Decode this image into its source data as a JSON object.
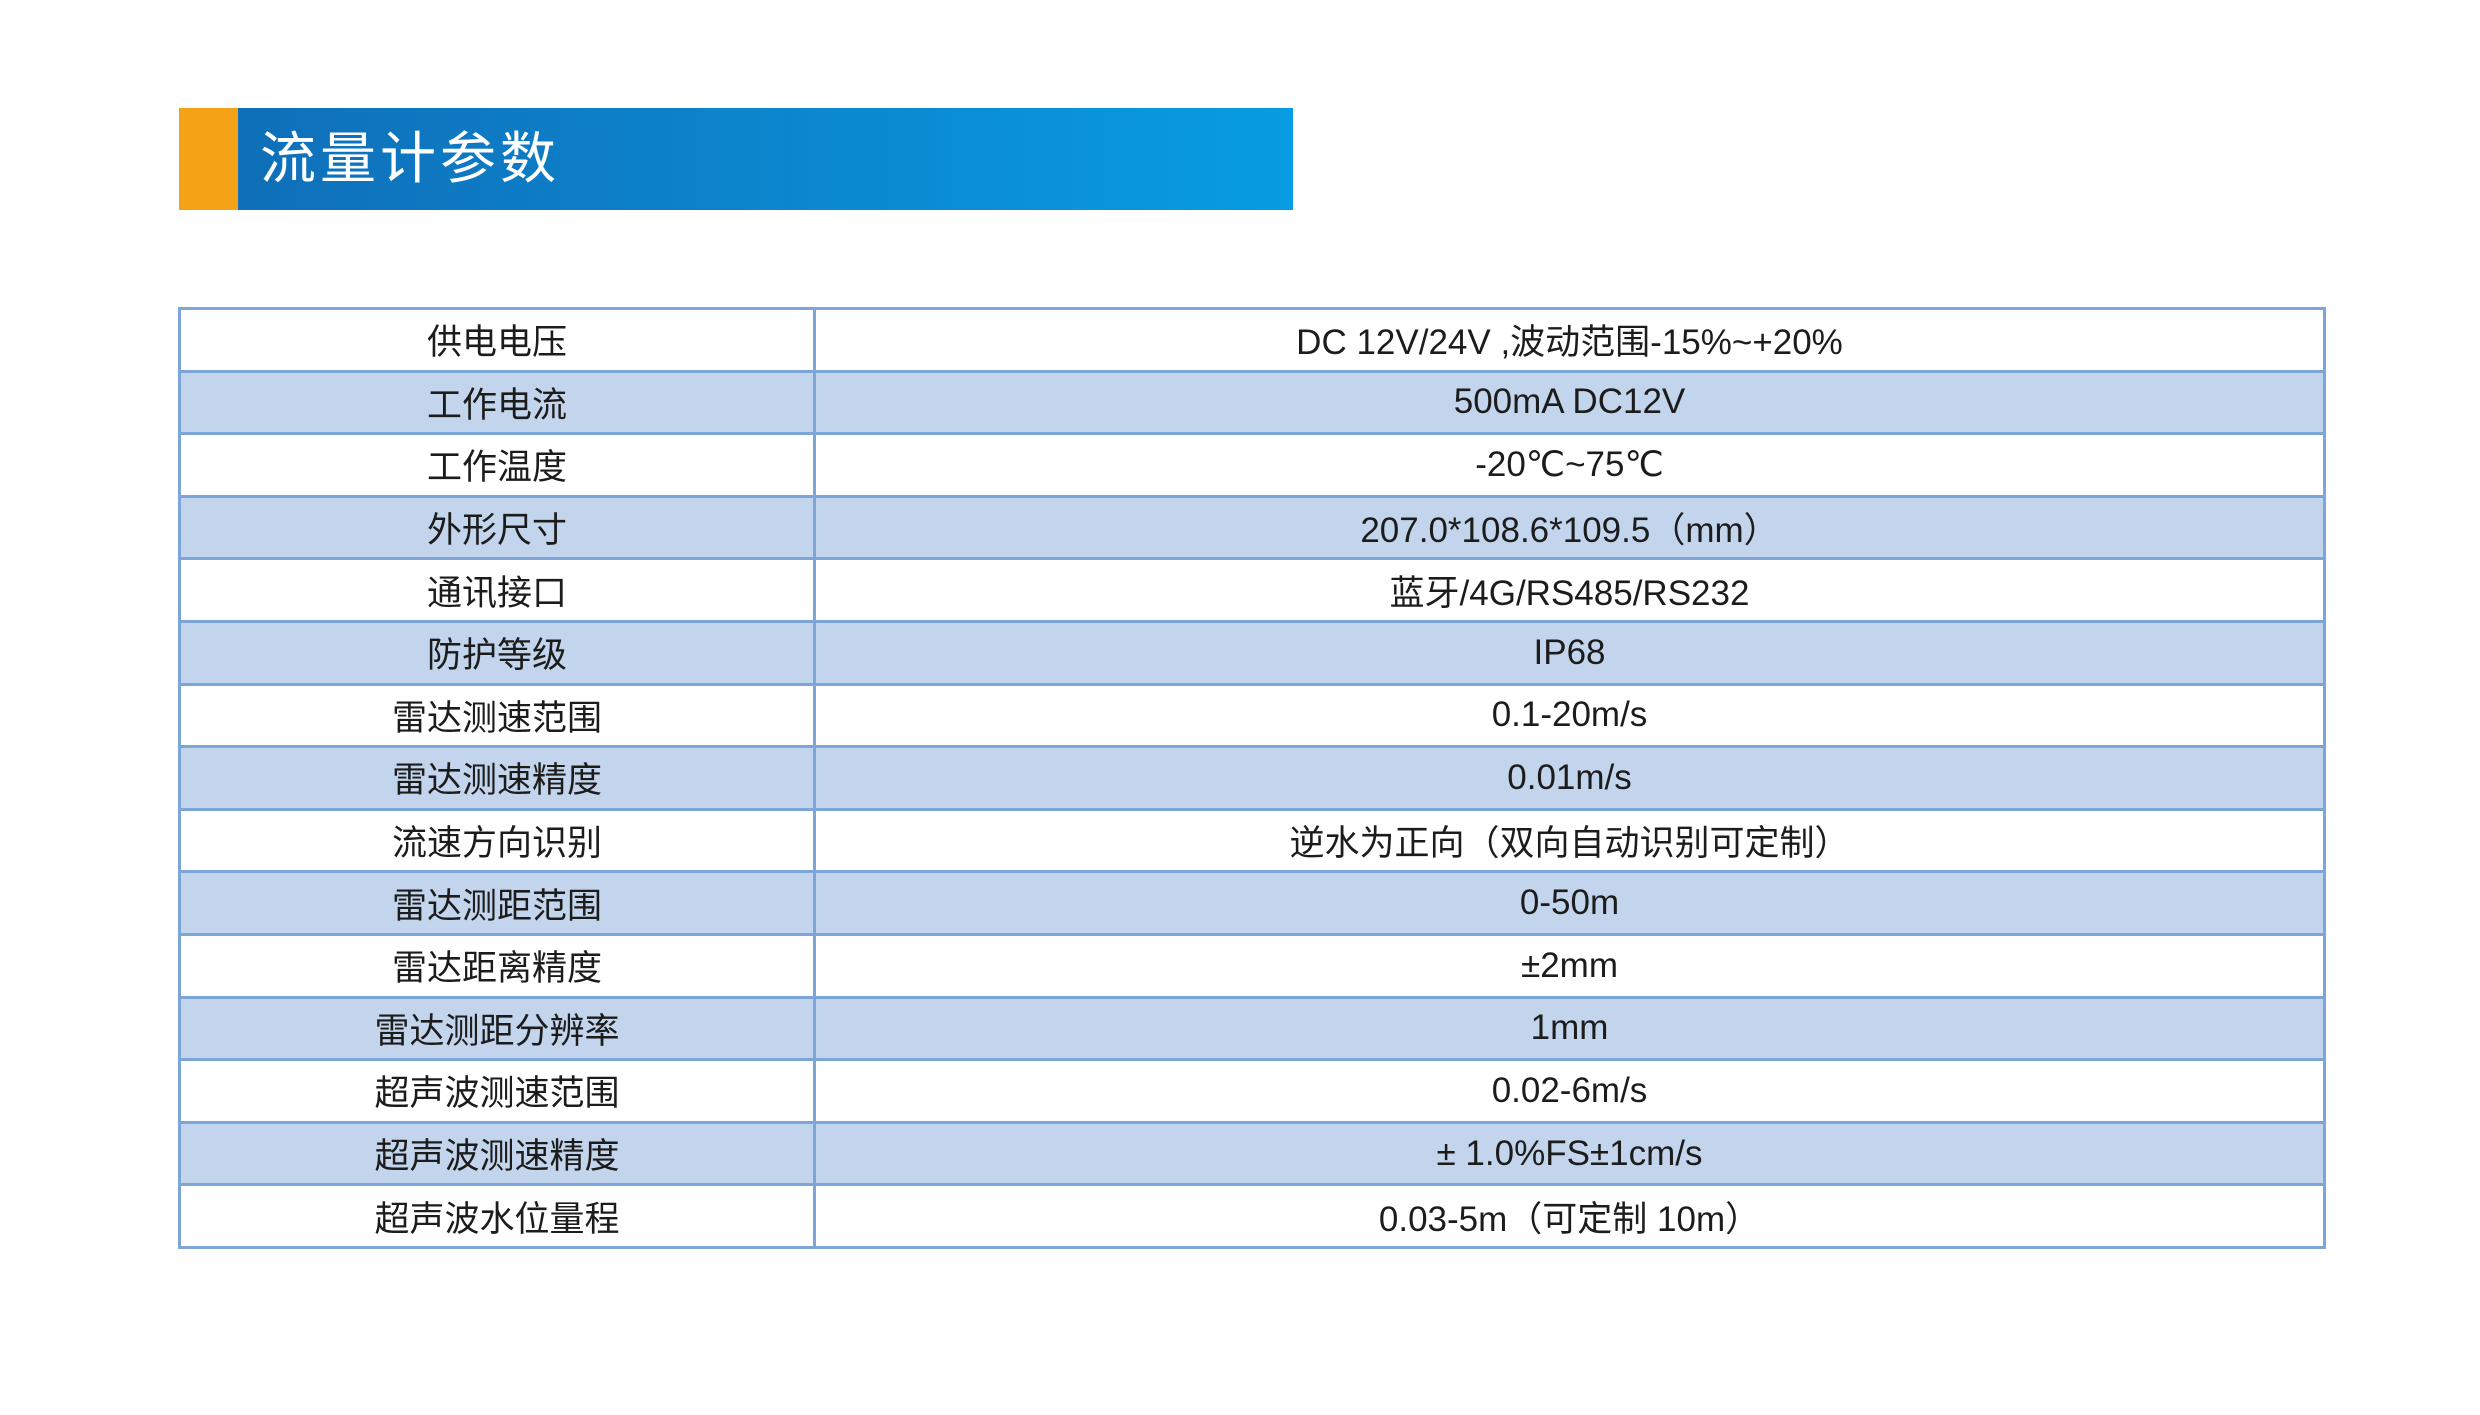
{
  "page": {
    "background": "#ffffff"
  },
  "colors": {
    "accent_orange": "#f5a216",
    "bar_gradient_start": "#0f6fb9",
    "bar_gradient_end": "#089ce2",
    "row_fill": "#ffffff",
    "row_alt_fill": "#c3d5ec",
    "table_border": "#7ca6d8",
    "title_text": "#ffffff",
    "body_text": "#1c1c1c"
  },
  "header": {
    "title": "流量计参数"
  },
  "table": {
    "rows": [
      {
        "label": "供电电压",
        "value": "DC 12V/24V ,波动范围-15%~+20%"
      },
      {
        "label": "工作电流",
        "value": "500mA  DC12V"
      },
      {
        "label": "工作温度",
        "value": "-20℃~75℃"
      },
      {
        "label": "外形尺寸",
        "value": "207.0*108.6*109.5（mm）"
      },
      {
        "label": "通讯接口",
        "value": "蓝牙/4G/RS485/RS232"
      },
      {
        "label": "防护等级",
        "value": "IP68"
      },
      {
        "label": "雷达测速范围",
        "value": "0.1-20m/s"
      },
      {
        "label": "雷达测速精度",
        "value": "0.01m/s"
      },
      {
        "label": "流速方向识别",
        "value": "逆水为正向（双向自动识别可定制）"
      },
      {
        "label": "雷达测距范围",
        "value": "0-50m"
      },
      {
        "label": "雷达距离精度",
        "value": "±2mm"
      },
      {
        "label": "雷达测距分辨率",
        "value": "1mm"
      },
      {
        "label": "超声波测速范围",
        "value": "0.02-6m/s"
      },
      {
        "label": "超声波测速精度",
        "value": "± 1.0%FS±1cm/s"
      },
      {
        "label": "超声波水位量程",
        "value": "0.03-5m（可定制 10m）"
      }
    ]
  }
}
